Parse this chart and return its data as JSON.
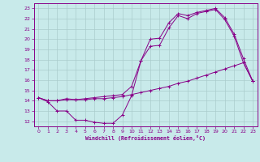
{
  "xlabel": "Windchill (Refroidissement éolien,°C)",
  "bg_color": "#c8eaea",
  "line_color": "#880088",
  "grid_color": "#aacccc",
  "ylim": [
    12,
    23
  ],
  "xlim": [
    0,
    23
  ],
  "yticks": [
    12,
    13,
    14,
    15,
    16,
    17,
    18,
    19,
    20,
    21,
    22,
    23
  ],
  "xticks": [
    0,
    1,
    2,
    3,
    4,
    5,
    6,
    7,
    8,
    9,
    10,
    11,
    12,
    13,
    14,
    15,
    16,
    17,
    18,
    19,
    20,
    21,
    22,
    23
  ],
  "line1_x": [
    0,
    1,
    2,
    3,
    4,
    5,
    6,
    7,
    8,
    9,
    10,
    11,
    12,
    13,
    14,
    15,
    16,
    17,
    18,
    19,
    20,
    21,
    22,
    23
  ],
  "line1_y": [
    14.3,
    13.9,
    13.0,
    13.0,
    12.1,
    12.1,
    11.9,
    11.8,
    11.8,
    12.6,
    14.5,
    17.9,
    19.3,
    19.4,
    21.1,
    22.3,
    22.0,
    22.5,
    22.7,
    22.9,
    21.9,
    20.3,
    17.7,
    15.9
  ],
  "line2_x": [
    0,
    1,
    2,
    3,
    4,
    5,
    6,
    7,
    8,
    9,
    10,
    11,
    12,
    13,
    14,
    15,
    16,
    17,
    18,
    19,
    20,
    21,
    22,
    23
  ],
  "line2_y": [
    14.3,
    14.0,
    14.0,
    14.1,
    14.1,
    14.1,
    14.2,
    14.2,
    14.3,
    14.4,
    14.6,
    14.8,
    15.0,
    15.2,
    15.4,
    15.7,
    15.9,
    16.2,
    16.5,
    16.8,
    17.1,
    17.4,
    17.7,
    15.9
  ],
  "line3_x": [
    0,
    1,
    2,
    3,
    4,
    5,
    6,
    7,
    8,
    9,
    10,
    11,
    12,
    13,
    14,
    15,
    16,
    17,
    18,
    19,
    20,
    21,
    22,
    23
  ],
  "line3_y": [
    14.3,
    14.0,
    14.0,
    14.2,
    14.1,
    14.2,
    14.3,
    14.4,
    14.5,
    14.6,
    15.4,
    17.9,
    20.0,
    20.1,
    21.6,
    22.5,
    22.3,
    22.6,
    22.8,
    23.0,
    22.1,
    20.5,
    18.1,
    15.9
  ]
}
